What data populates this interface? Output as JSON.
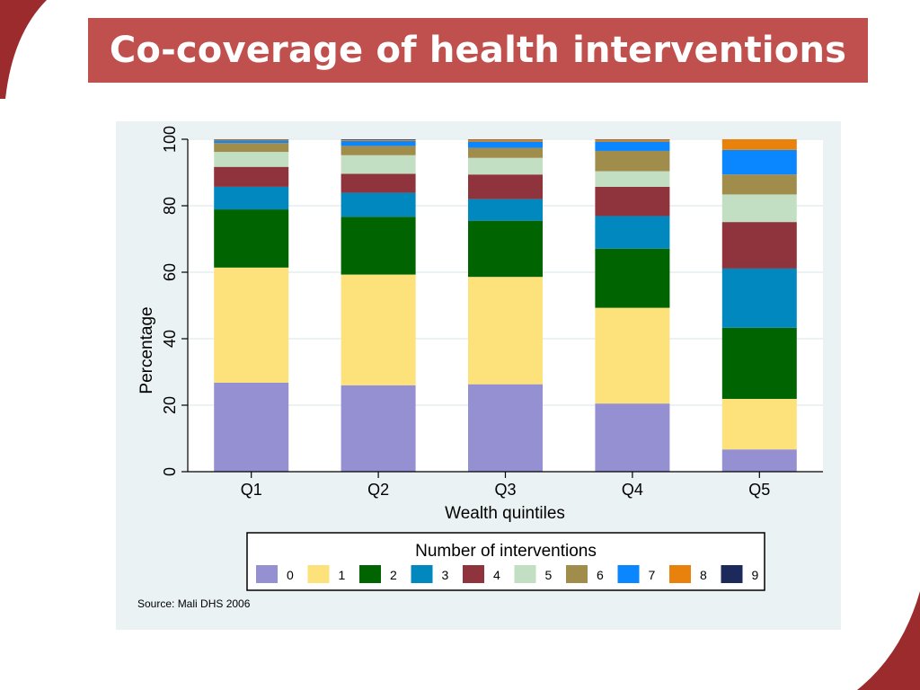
{
  "slide": {
    "title": "Co-coverage of health interventions",
    "source": "Source: Mali DHS 2006",
    "accent_color": "#c0504d",
    "panel_background": "#eaf2f3"
  },
  "chart_data": {
    "type": "bar",
    "stacked": true,
    "title": "",
    "xlabel": "Wealth quintiles",
    "ylabel": "Percentage",
    "ylim": [
      0,
      100
    ],
    "yticks": [
      0,
      20,
      40,
      60,
      80,
      100
    ],
    "grid": true,
    "legend_title": "Number of interventions",
    "legend_position": "bottom",
    "categories": [
      "Q1",
      "Q2",
      "Q3",
      "Q4",
      "Q5"
    ],
    "series": [
      {
        "name": "0",
        "color": "#9590d1",
        "values": [
          26.8,
          26.0,
          26.3,
          20.5,
          6.7
        ]
      },
      {
        "name": "1",
        "color": "#fde17a",
        "values": [
          34.6,
          33.3,
          32.3,
          28.8,
          15.2
        ]
      },
      {
        "name": "2",
        "color": "#006400",
        "values": [
          17.5,
          17.4,
          16.9,
          17.8,
          21.4
        ]
      },
      {
        "name": "3",
        "color": "#0088bf",
        "values": [
          6.8,
          7.2,
          6.5,
          9.8,
          17.8
        ]
      },
      {
        "name": "4",
        "color": "#8f333d",
        "values": [
          6.0,
          5.7,
          7.4,
          8.8,
          14.0
        ]
      },
      {
        "name": "5",
        "color": "#c3dfc3",
        "values": [
          4.5,
          5.6,
          5.0,
          4.7,
          8.3
        ]
      },
      {
        "name": "6",
        "color": "#a08c4b",
        "values": [
          2.7,
          2.8,
          3.0,
          6.1,
          6.0
        ]
      },
      {
        "name": "7",
        "color": "#0a86ff",
        "values": [
          0.7,
          1.5,
          1.9,
          2.8,
          7.4
        ]
      },
      {
        "name": "8",
        "color": "#e8820c",
        "values": [
          0.3,
          0.3,
          0.6,
          0.6,
          3.2
        ]
      },
      {
        "name": "9",
        "color": "#1b2a5a",
        "values": [
          0.1,
          0.2,
          0.1,
          0.1,
          0.0
        ]
      }
    ]
  }
}
